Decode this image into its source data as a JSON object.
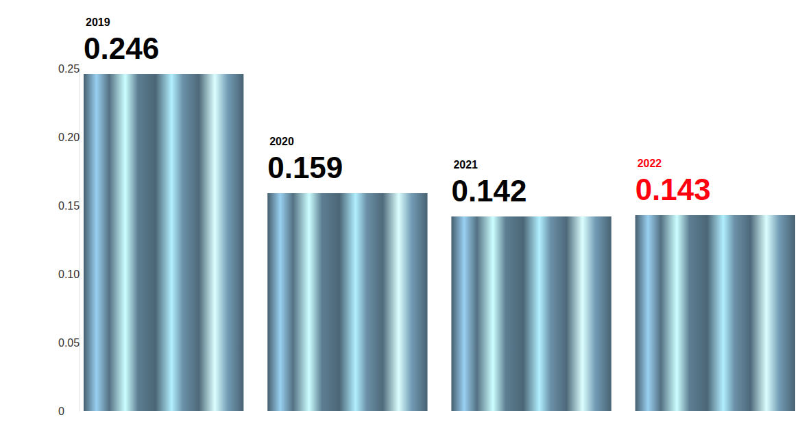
{
  "chart_data": {
    "type": "bar",
    "categories": [
      "2019",
      "2020",
      "2021",
      "2022"
    ],
    "values": [
      0.246,
      0.159,
      0.142,
      0.143
    ],
    "colors": [
      "#5d7e92",
      "#5d7e92",
      "#5d7e92",
      "#5d7e92"
    ],
    "ylim": [
      0,
      0.25
    ],
    "yticks": [
      0,
      0.05,
      {
        "value": 0.1,
        "label": "0.10"
      },
      0.15,
      {
        "value": 0.2,
        "label": "0.20"
      },
      0.25
    ],
    "data_labels": true,
    "grid": false
  }
}
